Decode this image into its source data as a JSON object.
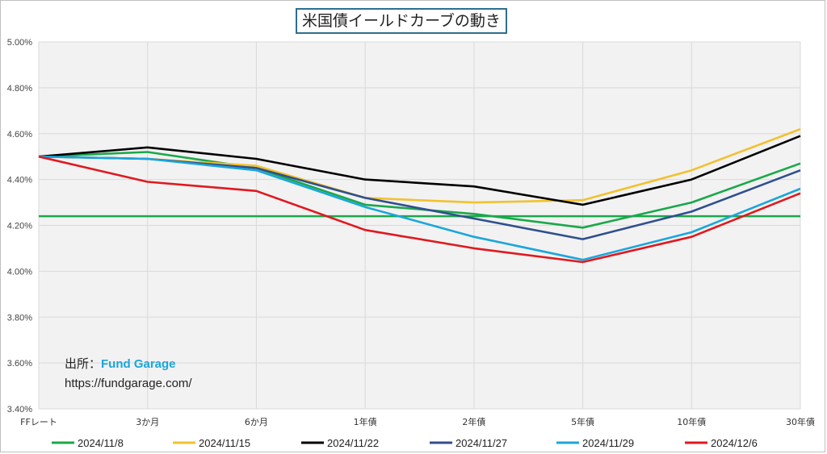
{
  "chart_data": {
    "type": "line",
    "title": "米国債イールドカーブの動き",
    "categories": [
      "FFレート",
      "3か月",
      "6か月",
      "1年債",
      "2年債",
      "5年債",
      "10年債",
      "30年債"
    ],
    "ylim": [
      3.4,
      5.0
    ],
    "yticks": [
      "3.40%",
      "3.60%",
      "3.80%",
      "4.00%",
      "4.20%",
      "4.40%",
      "4.60%",
      "4.80%",
      "5.00%"
    ],
    "ytick_values": [
      3.4,
      3.6,
      3.8,
      4.0,
      4.2,
      4.4,
      4.6,
      4.8,
      5.0
    ],
    "grid": true,
    "legend_position": "bottom",
    "series": [
      {
        "name": "2024/11/8",
        "color": "#1aa84a",
        "values": [
          4.5,
          4.52,
          4.45,
          4.29,
          4.25,
          4.19,
          4.3,
          4.47
        ]
      },
      {
        "name": "2024/11/15",
        "color": "#f2c12e",
        "values": [
          4.5,
          4.49,
          4.46,
          4.32,
          4.3,
          4.31,
          4.44,
          4.62
        ]
      },
      {
        "name": "2024/11/22",
        "color": "#000000",
        "values": [
          4.5,
          4.54,
          4.49,
          4.4,
          4.37,
          4.29,
          4.4,
          4.59
        ]
      },
      {
        "name": "2024/11/27",
        "color": "#2f4f8f",
        "values": [
          4.5,
          4.49,
          4.45,
          4.32,
          4.23,
          4.14,
          4.26,
          4.44
        ]
      },
      {
        "name": "2024/11/29",
        "color": "#1aa6dc",
        "values": [
          4.5,
          4.49,
          4.44,
          4.28,
          4.15,
          4.05,
          4.17,
          4.36
        ]
      },
      {
        "name": "2024/12/6",
        "color": "#e0191e",
        "values": [
          4.5,
          4.39,
          4.35,
          4.18,
          4.1,
          4.04,
          4.15,
          4.34
        ]
      }
    ],
    "reference_line": {
      "value": 4.24,
      "color": "#1aa84a"
    }
  },
  "source": {
    "label": "出所：",
    "brand": "Fund Garage",
    "url": "https://fundgarage.com/"
  }
}
